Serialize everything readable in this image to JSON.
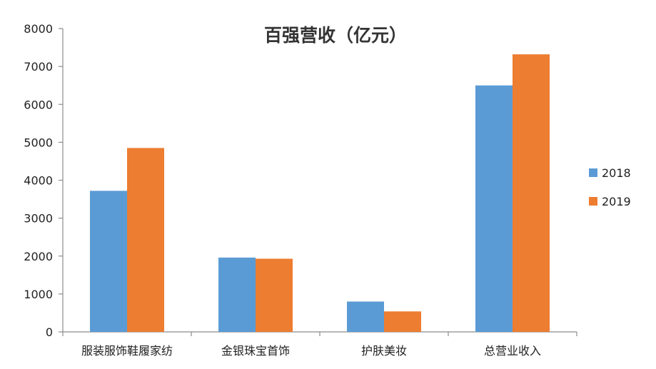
{
  "chart_data": {
    "type": "bar",
    "title": "百强营收（亿元）",
    "xlabel": "",
    "ylabel": "",
    "categories": [
      "服装服饰鞋履家纺",
      "金银珠宝首饰",
      "护肤美妆",
      "总营业收入"
    ],
    "series": [
      {
        "name": "2018",
        "color": "#5b9bd5",
        "values": [
          3720,
          1960,
          800,
          6500
        ]
      },
      {
        "name": "2019",
        "color": "#ed7d31",
        "values": [
          4850,
          1930,
          540,
          7320
        ]
      }
    ],
    "ylim": [
      0,
      8000
    ],
    "yticks": [
      "0",
      "1000",
      "2000",
      "3000",
      "4000",
      "5000",
      "6000",
      "7000",
      "8000"
    ],
    "grid": false,
    "legend_position": "right"
  }
}
